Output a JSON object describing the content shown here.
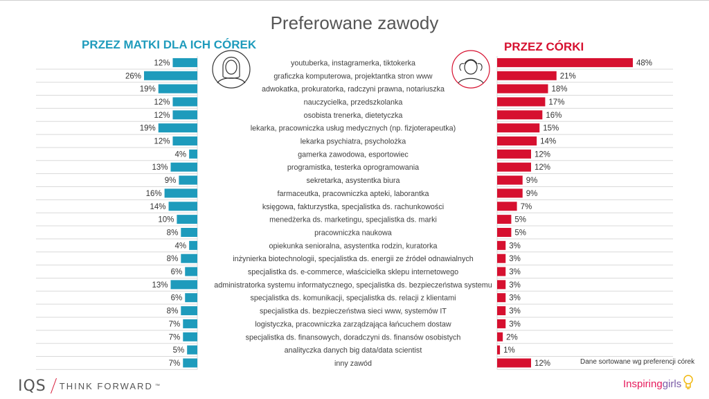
{
  "title": "Preferowane zawody",
  "left_header": "PRZEZ MATKI DLA ICH CÓREK",
  "right_header": "PRZEZ CÓRKI",
  "note": "Dane sortowane wg preferencji córek",
  "logo_left": {
    "brand": "IQS",
    "tagline": "THINK FORWARD",
    "tm": "™"
  },
  "logo_right": {
    "part1": "Inspiring",
    "part2": "girls"
  },
  "colors": {
    "mothers": "#1e9bbc",
    "daughters": "#d6102f",
    "grid": "#d9d9d9"
  },
  "icons": {
    "mother": "woman-avatar-icon",
    "daughter": "girl-avatar-icon",
    "bulb": "lightbulb-icon"
  },
  "chart_data": {
    "type": "bar",
    "categories": [
      "youtuberka, instagramerka, tiktokerka",
      "graficzka komputerowa, projektantka stron www",
      "adwokatka, prokuratorka, radczyni prawna, notariuszka",
      "nauczycielka, przedszkolanka",
      "osobista trenerka, dietetyczka",
      "lekarka, pracowniczka usług medycznych (np. fizjoterapeutka)",
      "lekarka psychiatra, psycholożka",
      "gamerka zawodowa, esportowiec",
      "programistka, testerka oprogramowania",
      "sekretarka, asystentka biura",
      "farmaceutka, pracowniczka apteki, laborantka",
      "księgowa, fakturzystka, specjalistka ds. rachunkowości",
      "menedżerka ds. marketingu, specjalistka ds. marki",
      "pracowniczka naukowa",
      "opiekunka senioralna, asystentka rodzin, kuratorka",
      "inżynierka biotechnologii, specjalistka ds. energii ze źródeł odnawialnych",
      "specjalistka ds. e-commerce, właścicielka sklepu internetowego",
      "administratorka systemu informatycznego, specjalistka ds. bezpieczeństwa systemu",
      "specjalistka ds. komunikacji, specjalistka ds. relacji z klientami",
      "specjalistka ds. bezpieczeństwa sieci www, systemów IT",
      "logistyczka, pracowniczka zarządzająca łańcuchem dostaw",
      "specjalistka ds. finansowych, doradczyni ds. finansów osobistych",
      "analityczka danych big data/data scientist",
      "inny zawód"
    ],
    "series": [
      {
        "name": "PRZEZ MATKI DLA ICH CÓREK",
        "values": [
          12,
          26,
          19,
          12,
          12,
          19,
          12,
          4,
          13,
          9,
          16,
          14,
          10,
          8,
          4,
          8,
          6,
          13,
          6,
          8,
          7,
          7,
          5,
          7
        ]
      },
      {
        "name": "PRZEZ CÓRKI",
        "values": [
          48,
          21,
          18,
          17,
          16,
          15,
          14,
          12,
          12,
          9,
          9,
          7,
          5,
          5,
          3,
          3,
          3,
          3,
          3,
          3,
          3,
          2,
          1,
          12
        ]
      }
    ],
    "value_suffix": "%"
  }
}
